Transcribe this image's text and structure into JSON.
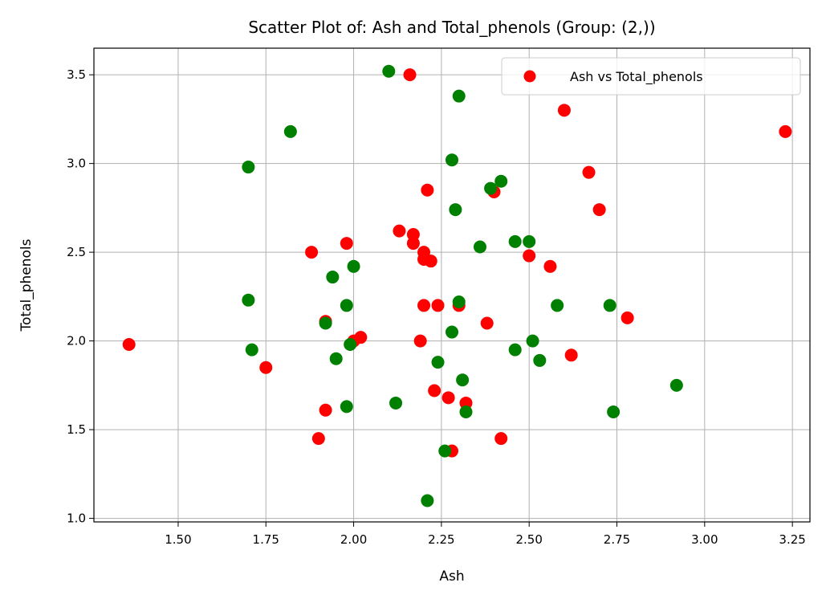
{
  "chart_data": {
    "type": "scatter",
    "title": "Scatter Plot of: Ash and Total_phenols (Group: (2,))",
    "xlabel": "Ash",
    "ylabel": "Total_phenols",
    "xlim": [
      1.26,
      3.3
    ],
    "ylim": [
      0.98,
      3.65
    ],
    "xticks": [
      "1.50",
      "1.75",
      "2.00",
      "2.25",
      "2.50",
      "2.75",
      "3.00",
      "3.25"
    ],
    "xtick_values": [
      1.5,
      1.75,
      2.0,
      2.25,
      2.5,
      2.75,
      3.0,
      3.25
    ],
    "yticks": [
      "1.0",
      "1.5",
      "2.0",
      "2.5",
      "3.0",
      "3.5"
    ],
    "ytick_values": [
      1.0,
      1.5,
      2.0,
      2.5,
      3.0,
      3.5
    ],
    "grid": true,
    "legend_position": "top-right",
    "series": [
      {
        "name": "Ash vs Total_phenols",
        "color": "#ff0000",
        "points": [
          [
            1.36,
            1.98
          ],
          [
            1.75,
            1.85
          ],
          [
            1.88,
            2.5
          ],
          [
            1.9,
            1.45
          ],
          [
            1.92,
            1.61
          ],
          [
            1.92,
            2.11
          ],
          [
            1.98,
            2.55
          ],
          [
            2.0,
            2.0
          ],
          [
            2.02,
            2.02
          ],
          [
            2.13,
            2.62
          ],
          [
            2.16,
            3.5
          ],
          [
            2.17,
            2.6
          ],
          [
            2.17,
            2.55
          ],
          [
            2.19,
            2.0
          ],
          [
            2.2,
            2.5
          ],
          [
            2.2,
            2.46
          ],
          [
            2.2,
            2.2
          ],
          [
            2.21,
            2.85
          ],
          [
            2.22,
            2.45
          ],
          [
            2.23,
            1.72
          ],
          [
            2.24,
            2.2
          ],
          [
            2.27,
            1.68
          ],
          [
            2.28,
            1.38
          ],
          [
            2.3,
            2.2
          ],
          [
            2.32,
            1.65
          ],
          [
            2.38,
            2.1
          ],
          [
            2.4,
            2.84
          ],
          [
            2.42,
            1.45
          ],
          [
            2.5,
            2.48
          ],
          [
            2.56,
            2.42
          ],
          [
            2.6,
            3.3
          ],
          [
            2.62,
            1.92
          ],
          [
            2.67,
            2.95
          ],
          [
            2.7,
            2.74
          ],
          [
            2.78,
            2.13
          ],
          [
            3.23,
            3.18
          ]
        ]
      },
      {
        "color": "#008000",
        "points": [
          [
            1.7,
            2.98
          ],
          [
            1.7,
            2.23
          ],
          [
            1.71,
            1.95
          ],
          [
            1.82,
            3.18
          ],
          [
            1.92,
            2.1
          ],
          [
            1.94,
            2.36
          ],
          [
            1.95,
            1.9
          ],
          [
            1.98,
            2.2
          ],
          [
            1.98,
            1.63
          ],
          [
            1.99,
            1.98
          ],
          [
            2.0,
            2.42
          ],
          [
            2.1,
            3.52
          ],
          [
            2.12,
            1.65
          ],
          [
            2.21,
            1.1
          ],
          [
            2.24,
            1.88
          ],
          [
            2.26,
            1.38
          ],
          [
            2.28,
            3.02
          ],
          [
            2.28,
            2.05
          ],
          [
            2.29,
            2.74
          ],
          [
            2.3,
            3.38
          ],
          [
            2.3,
            2.22
          ],
          [
            2.31,
            1.78
          ],
          [
            2.32,
            1.6
          ],
          [
            2.36,
            2.53
          ],
          [
            2.39,
            2.86
          ],
          [
            2.42,
            2.9
          ],
          [
            2.46,
            2.56
          ],
          [
            2.46,
            1.95
          ],
          [
            2.5,
            2.56
          ],
          [
            2.51,
            2.0
          ],
          [
            2.53,
            1.89
          ],
          [
            2.58,
            2.2
          ],
          [
            2.73,
            2.2
          ],
          [
            2.74,
            1.6
          ],
          [
            2.92,
            1.75
          ]
        ]
      }
    ]
  }
}
